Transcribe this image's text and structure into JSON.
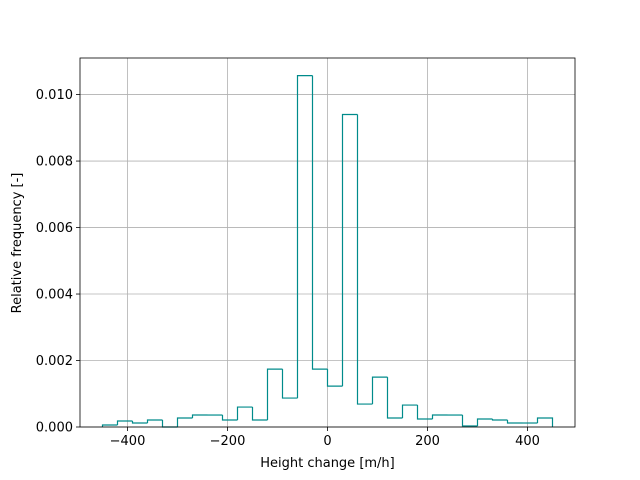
{
  "chart_data": {
    "type": "histogram",
    "histtype": "step",
    "color": "#008b8b",
    "xlabel": "Height change [m/h]",
    "ylabel": "Relative frequency [-]",
    "bins": [
      -450,
      -420,
      -390,
      -360,
      -330,
      -300,
      -270,
      -240,
      -210,
      -180,
      -150,
      -120,
      -90,
      -60,
      -30,
      0,
      30,
      60,
      90,
      120,
      150,
      180,
      210,
      240,
      270,
      300,
      330,
      360,
      390,
      420,
      450
    ],
    "values": [
      6e-05,
      0.00018,
      0.00012,
      0.00021,
      0,
      0.00027,
      0.00036,
      0.00036,
      0.00021,
      0.0006,
      0.00021,
      0.00174,
      0.00087,
      0.01057,
      0.00174,
      0.00123,
      0.0094,
      0.00069,
      0.0015,
      0.00027,
      0.00066,
      0.00024,
      0.00036,
      0.00036,
      3e-05,
      0.00024,
      0.00021,
      0.00012,
      0.00012,
      0.00027
    ],
    "xlim": [
      -495,
      495
    ],
    "ylim": [
      0,
      0.0111
    ],
    "xticks": [
      {
        "value": -400,
        "label": "−400"
      },
      {
        "value": -200,
        "label": "−200"
      },
      0,
      200,
      400
    ],
    "yticks": [
      {
        "value": 0,
        "label": "0.000"
      },
      {
        "value": 0.002,
        "label": "0.002"
      },
      {
        "value": 0.004,
        "label": "0.004"
      },
      {
        "value": 0.006,
        "label": "0.006"
      },
      {
        "value": 0.008,
        "label": "0.008"
      },
      {
        "value": 0.01,
        "label": "0.010"
      }
    ],
    "grid": true
  }
}
